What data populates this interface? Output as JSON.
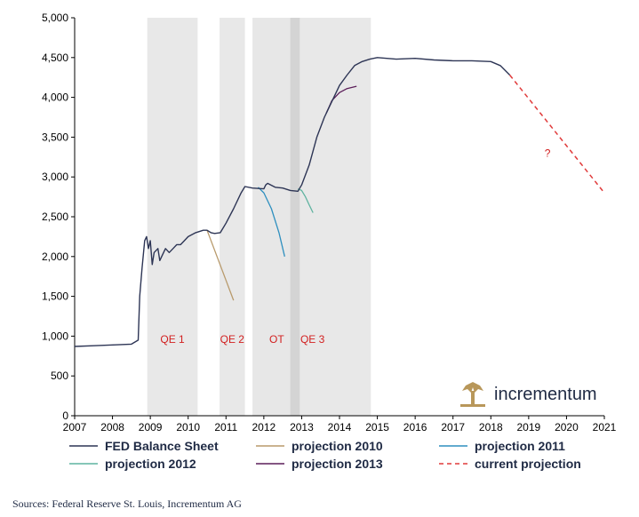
{
  "chart_data": {
    "type": "line",
    "title": "",
    "xlabel": "",
    "ylabel": "",
    "xlim": [
      2007,
      2021
    ],
    "ylim": [
      0,
      5000
    ],
    "y_ticks": [
      0,
      500,
      1000,
      1500,
      2000,
      2500,
      3000,
      3500,
      4000,
      4500,
      5000
    ],
    "y_tick_labels": [
      "0",
      "500",
      "1,000",
      "1,500",
      "2,000",
      "2,500",
      "3,000",
      "3,500",
      "4,000",
      "4,500",
      "5,000"
    ],
    "x_ticks": [
      2007,
      2008,
      2009,
      2010,
      2011,
      2012,
      2013,
      2014,
      2015,
      2016,
      2017,
      2018,
      2019,
      2020,
      2021
    ],
    "x_tick_labels": [
      "2007",
      "2008",
      "2009",
      "2010",
      "2011",
      "2012",
      "2013",
      "2014",
      "2015",
      "2016",
      "2017",
      "2018",
      "2019",
      "2020",
      "2021"
    ],
    "shaded_periods": [
      {
        "start": 2008.92,
        "end": 2010.25,
        "label": "QE 1"
      },
      {
        "start": 2010.83,
        "end": 2011.5,
        "label": "QE 2"
      },
      {
        "start": 2011.7,
        "end": 2012.95,
        "label": "OT"
      },
      {
        "start": 2012.7,
        "end": 2014.83,
        "label": "QE 3"
      }
    ],
    "annotations": [
      {
        "text": "?",
        "x": 2019.5,
        "y": 3300
      }
    ],
    "series": [
      {
        "name": "FED Balance Sheet",
        "color": "#2d3555",
        "style": "solid",
        "x": [
          2007.0,
          2007.5,
          2008.0,
          2008.5,
          2008.68,
          2008.72,
          2008.78,
          2008.85,
          2008.9,
          2008.95,
          2009.0,
          2009.05,
          2009.1,
          2009.2,
          2009.25,
          2009.3,
          2009.4,
          2009.5,
          2009.6,
          2009.7,
          2009.8,
          2009.9,
          2010.0,
          2010.2,
          2010.4,
          2010.5,
          2010.6,
          2010.7,
          2010.85,
          2011.0,
          2011.2,
          2011.4,
          2011.5,
          2011.7,
          2012.0,
          2012.05,
          2012.1,
          2012.3,
          2012.5,
          2012.7,
          2012.9,
          2013.0,
          2013.2,
          2013.4,
          2013.6,
          2013.8,
          2014.0,
          2014.2,
          2014.4,
          2014.6,
          2014.8,
          2015.0,
          2015.5,
          2016.0,
          2016.5,
          2017.0,
          2017.5,
          2018.0,
          2018.25,
          2018.5
        ],
        "values": [
          870,
          880,
          890,
          900,
          950,
          1500,
          1850,
          2200,
          2250,
          2100,
          2200,
          1900,
          2050,
          2100,
          1950,
          2000,
          2100,
          2050,
          2100,
          2150,
          2150,
          2200,
          2250,
          2300,
          2330,
          2330,
          2300,
          2290,
          2300,
          2420,
          2600,
          2800,
          2880,
          2860,
          2850,
          2900,
          2920,
          2870,
          2860,
          2830,
          2820,
          2900,
          3150,
          3500,
          3750,
          3950,
          4150,
          4280,
          4400,
          4450,
          4480,
          4500,
          4480,
          4490,
          4470,
          4460,
          4460,
          4450,
          4400,
          4280
        ]
      },
      {
        "name": "projection 2010",
        "color": "#b89a6c",
        "style": "solid",
        "x": [
          2010.5,
          2011.2
        ],
        "values": [
          2330,
          1450
        ]
      },
      {
        "name": "projection 2011",
        "color": "#2e8fbf",
        "style": "solid",
        "x": [
          2011.85,
          2012.0,
          2012.2,
          2012.4,
          2012.55
        ],
        "values": [
          2870,
          2800,
          2600,
          2300,
          2000
        ]
      },
      {
        "name": "projection 2012",
        "color": "#5fb3a0",
        "style": "solid",
        "x": [
          2012.9,
          2013.0,
          2013.1,
          2013.2,
          2013.3
        ],
        "values": [
          2850,
          2830,
          2750,
          2650,
          2550
        ]
      },
      {
        "name": "projection 2013",
        "color": "#5c1f5a",
        "style": "solid",
        "x": [
          2013.65,
          2013.8,
          2014.0,
          2014.2,
          2014.45
        ],
        "values": [
          3800,
          3960,
          4060,
          4110,
          4140
        ]
      },
      {
        "name": "current projection",
        "color": "#e03a3a",
        "style": "dashed",
        "x": [
          2018.5,
          2021.0
        ],
        "values": [
          4280,
          2800
        ]
      }
    ],
    "legend": {
      "placement": "bottom",
      "entries": [
        "FED Balance Sheet",
        "projection 2010",
        "projection 2011",
        "projection 2012",
        "projection 2013",
        "current projection"
      ]
    }
  },
  "brand": {
    "name": "incrementum",
    "color": "#1f2a44",
    "logo_color": "#b8975a"
  },
  "source_text": "Sources: Federal Reserve St. Louis, Incrementum AG"
}
